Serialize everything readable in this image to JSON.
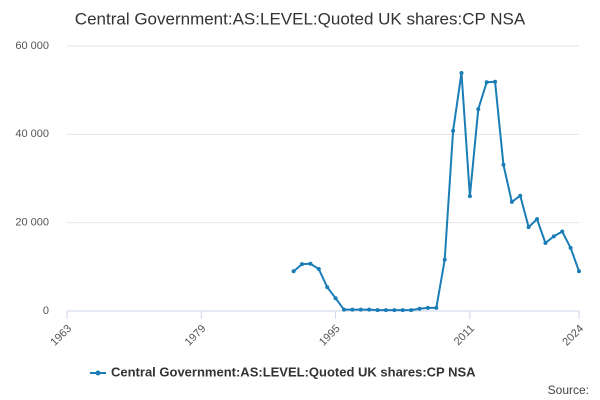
{
  "chart_data": {
    "type": "line",
    "title": "Central Government:AS:LEVEL:Quoted UK shares:CP NSA",
    "source": "Source:",
    "x": [
      1990,
      1991,
      1992,
      1993,
      1994,
      1995,
      1996,
      1997,
      1998,
      1999,
      2000,
      2001,
      2002,
      2003,
      2004,
      2005,
      2006,
      2007,
      2008,
      2009,
      2010,
      2011,
      2012,
      2013,
      2014,
      2015,
      2016,
      2017,
      2018,
      2019,
      2020,
      2021,
      2022,
      2023,
      2024
    ],
    "series": [
      {
        "name": "Central Government:AS:LEVEL:Quoted UK shares:CP NSA",
        "color": "#1a7db6",
        "values": [
          9000,
          10600,
          10700,
          9500,
          5400,
          2900,
          300,
          300,
          300,
          300,
          200,
          200,
          200,
          200,
          200,
          500,
          700,
          700,
          11600,
          40800,
          53900,
          26000,
          45700,
          51800,
          51900,
          33100,
          24700,
          26100,
          19000,
          20800,
          15400,
          16900,
          18000,
          14300,
          9000
        ]
      }
    ],
    "xlim": [
      1963,
      2024
    ],
    "xticks": [
      1963,
      1979,
      1995,
      2011,
      2024
    ],
    "ylim": [
      0,
      60000
    ],
    "yticks": [
      0,
      {
        "value": 20000,
        "label": "20 000"
      },
      {
        "value": 40000,
        "label": "40 000"
      },
      {
        "value": 60000,
        "label": "60 000"
      }
    ],
    "grid": true,
    "legend": "bottom"
  }
}
